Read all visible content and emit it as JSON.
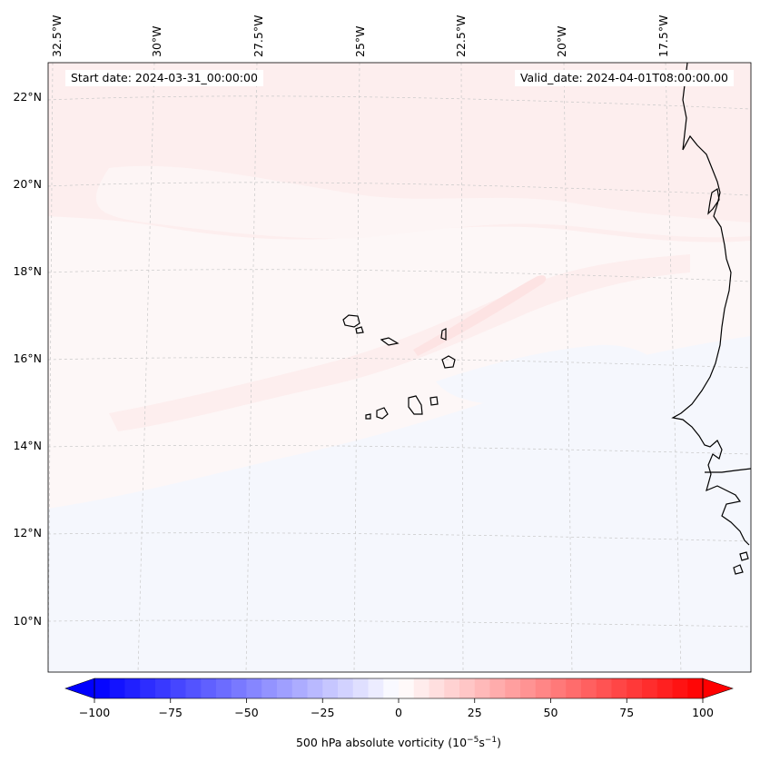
{
  "map": {
    "start_date_text": "Start date: 2024-03-31_00:00:00",
    "valid_date_text": "Valid_date: 2024-04-01T08:00:00.00",
    "lon_labels": [
      "32.5°W",
      "30°W",
      "27.5°W",
      "25°W",
      "22.5°W",
      "20°W",
      "17.5°W"
    ],
    "lat_labels": [
      "22°N",
      "20°N",
      "18°N",
      "16°N",
      "14°N",
      "12°N",
      "10°N"
    ],
    "field_colors": {
      "positive_weak": "#fdeeee",
      "positive_mid": "#fde3e3",
      "near_zero": "#fdf7f7",
      "negative_weak": "#f5f7fd"
    }
  },
  "colorbar": {
    "label": "500 hPa absolute vorticity (10⁻⁵s⁻¹)",
    "label_base": "500 hPa absolute vorticity (10",
    "label_exp1": "−5",
    "label_mid": "s",
    "label_exp2": "−1",
    "label_end": ")",
    "min": -100,
    "max": 100,
    "tick_values": [
      -100,
      -75,
      -50,
      -25,
      0,
      25,
      50,
      75,
      100
    ],
    "tick_labels": [
      "−100",
      "−75",
      "−50",
      "−25",
      "0",
      "25",
      "50",
      "75",
      "100"
    ],
    "extend": "both",
    "colormap": "bwr",
    "low_color": "#0000ff",
    "mid_color": "#ffffff",
    "high_color": "#ff0000"
  }
}
